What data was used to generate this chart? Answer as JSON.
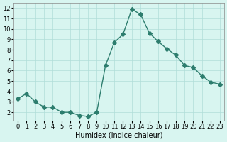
{
  "x": [
    0,
    1,
    2,
    3,
    4,
    5,
    6,
    7,
    8,
    9,
    10,
    11,
    12,
    13,
    14,
    15,
    16,
    17,
    18,
    19,
    20,
    21,
    22,
    23
  ],
  "y": [
    3.3,
    3.8,
    3.0,
    2.5,
    2.5,
    2.0,
    2.0,
    1.7,
    1.6,
    2.0,
    6.5,
    8.7,
    9.5,
    11.9,
    11.4,
    9.6,
    8.8,
    8.1,
    7.5,
    6.5,
    6.3,
    5.5,
    4.9,
    4.7
  ],
  "line_color": "#2d7d6e",
  "marker": "D",
  "marker_size": 3,
  "bg_color": "#d8f5f0",
  "grid_color": "#b0ddd8",
  "xlabel": "Humidex (Indice chaleur)",
  "ylim": [
    1.2,
    12.5
  ],
  "xlim": [
    -0.5,
    23.5
  ],
  "yticks": [
    2,
    3,
    4,
    5,
    6,
    7,
    8,
    9,
    10,
    11,
    12
  ],
  "xticks": [
    0,
    1,
    2,
    3,
    4,
    5,
    6,
    7,
    8,
    9,
    10,
    11,
    12,
    13,
    14,
    15,
    16,
    17,
    18,
    19,
    20,
    21,
    22,
    23
  ],
  "label_fontsize": 7,
  "tick_fontsize": 6
}
